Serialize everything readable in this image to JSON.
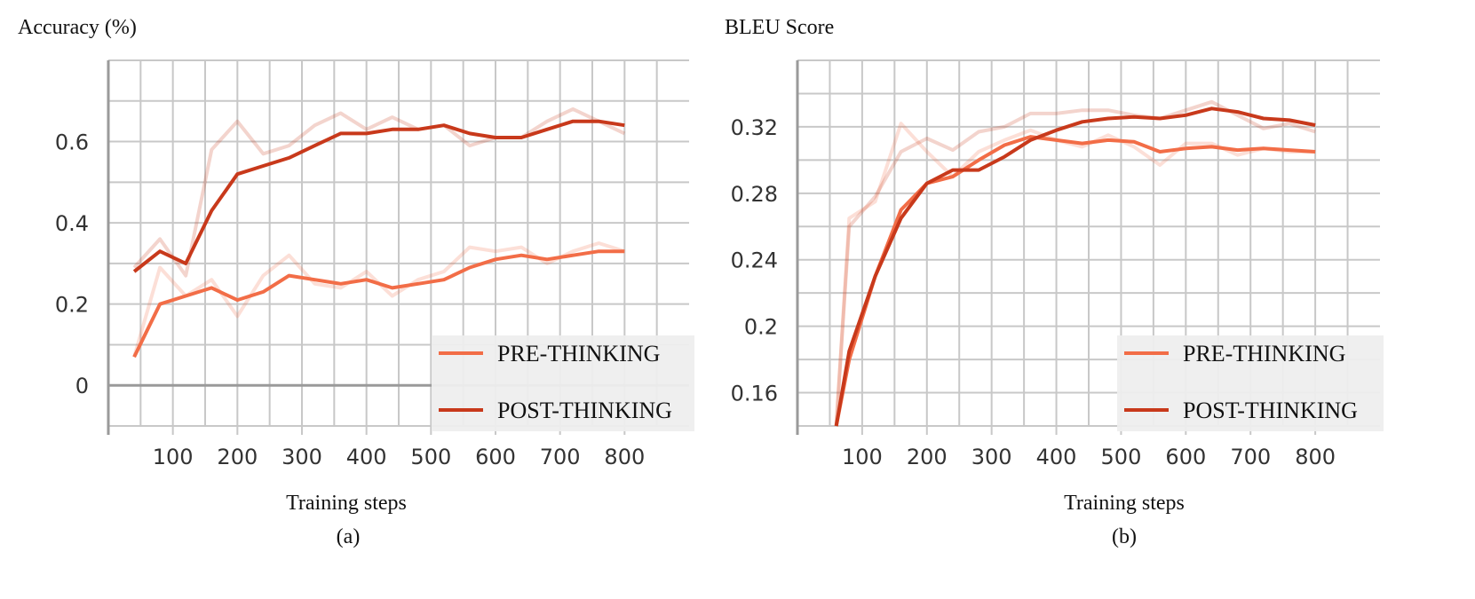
{
  "colors": {
    "pre": "#f26d47",
    "post": "#c8391b"
  },
  "chart_data": [
    {
      "type": "line",
      "panel_label": "(a)",
      "ylabel": "Accuracy (%)",
      "xlabel": "Training steps",
      "xlim": [
        0,
        900
      ],
      "ylim": [
        -0.1,
        0.8
      ],
      "xticks": [
        100,
        200,
        300,
        400,
        500,
        600,
        700,
        800
      ],
      "yticks": [
        0,
        0.2,
        0.4,
        0.6
      ],
      "ytick_labels": [
        "0",
        "0.2",
        "0.4",
        "0.6"
      ],
      "legend": [
        "PRE-THINKING",
        "POST-THINKING"
      ],
      "legend_position": "bottom-right",
      "x": [
        40,
        80,
        120,
        160,
        200,
        240,
        280,
        320,
        360,
        400,
        440,
        480,
        520,
        560,
        600,
        640,
        680,
        720,
        760,
        800
      ],
      "series": [
        {
          "name": "PRE-THINKING",
          "raw": [
            0.07,
            0.29,
            0.22,
            0.26,
            0.17,
            0.27,
            0.32,
            0.25,
            0.24,
            0.28,
            0.22,
            0.26,
            0.28,
            0.34,
            0.33,
            0.34,
            0.3,
            0.33,
            0.35,
            0.33
          ],
          "smoothed": [
            0.07,
            0.2,
            0.22,
            0.24,
            0.21,
            0.23,
            0.27,
            0.26,
            0.25,
            0.26,
            0.24,
            0.25,
            0.26,
            0.29,
            0.31,
            0.32,
            0.31,
            0.32,
            0.33,
            0.33
          ]
        },
        {
          "name": "POST-THINKING",
          "raw": [
            0.29,
            0.36,
            0.27,
            0.58,
            0.65,
            0.57,
            0.59,
            0.64,
            0.67,
            0.63,
            0.66,
            0.63,
            0.64,
            0.59,
            0.61,
            0.61,
            0.65,
            0.68,
            0.65,
            0.62
          ],
          "smoothed": [
            0.28,
            0.33,
            0.3,
            0.43,
            0.52,
            0.54,
            0.56,
            0.59,
            0.62,
            0.62,
            0.63,
            0.63,
            0.64,
            0.62,
            0.61,
            0.61,
            0.63,
            0.65,
            0.65,
            0.64
          ]
        }
      ]
    },
    {
      "type": "line",
      "panel_label": "(b)",
      "ylabel": "BLEU Score",
      "xlabel": "Training steps",
      "xlim": [
        0,
        900
      ],
      "ylim": [
        0.14,
        0.36
      ],
      "xticks": [
        100,
        200,
        300,
        400,
        500,
        600,
        700,
        800
      ],
      "yticks": [
        0.16,
        0.2,
        0.24,
        0.28,
        0.32
      ],
      "ytick_labels": [
        "0.16",
        "0.2",
        "0.24",
        "0.28",
        "0.32"
      ],
      "legend": [
        "PRE-THINKING",
        "POST-THINKING"
      ],
      "legend_position": "bottom-right",
      "x": [
        60,
        80,
        120,
        160,
        200,
        240,
        280,
        320,
        360,
        400,
        440,
        480,
        520,
        560,
        600,
        640,
        680,
        720,
        760,
        800
      ],
      "series": [
        {
          "name": "PRE-THINKING",
          "raw": [
            0.14,
            0.265,
            0.275,
            0.322,
            0.305,
            0.29,
            0.305,
            0.312,
            0.318,
            0.312,
            0.308,
            0.315,
            0.308,
            0.297,
            0.31,
            0.31,
            0.303,
            0.307,
            0.305,
            0.305
          ],
          "smoothed": [
            0.14,
            0.18,
            0.23,
            0.27,
            0.286,
            0.29,
            0.3,
            0.309,
            0.314,
            0.312,
            0.31,
            0.312,
            0.311,
            0.305,
            0.307,
            0.308,
            0.306,
            0.307,
            0.306,
            0.305
          ]
        },
        {
          "name": "POST-THINKING",
          "raw": [
            0.14,
            0.26,
            0.278,
            0.305,
            0.313,
            0.306,
            0.317,
            0.32,
            0.328,
            0.328,
            0.33,
            0.33,
            0.327,
            0.325,
            0.33,
            0.335,
            0.327,
            0.319,
            0.322,
            0.317
          ],
          "smoothed": [
            0.14,
            0.185,
            0.23,
            0.265,
            0.286,
            0.294,
            0.294,
            0.302,
            0.312,
            0.318,
            0.323,
            0.325,
            0.326,
            0.325,
            0.327,
            0.331,
            0.329,
            0.325,
            0.324,
            0.321
          ]
        }
      ]
    }
  ]
}
